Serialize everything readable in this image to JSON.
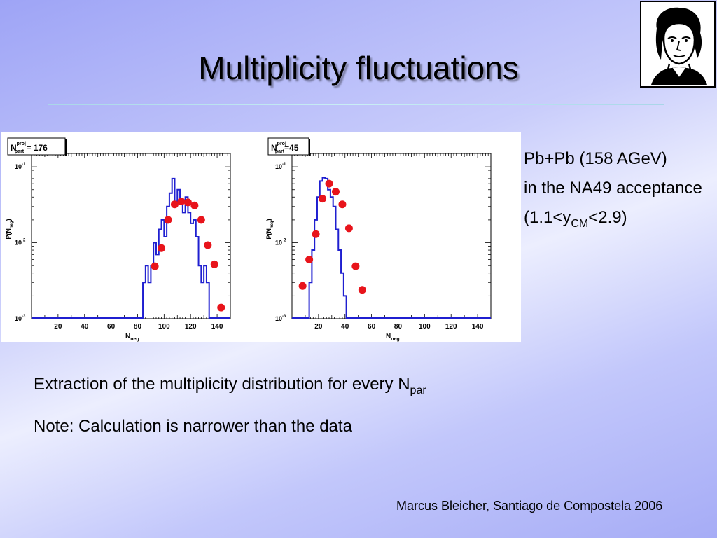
{
  "slide": {
    "title": "Multiplicity fluctuations",
    "side": {
      "line1": "Pb+Pb (158 AGeV)",
      "line2": "in the NA49 acceptance",
      "line3_pre": "(1.1<y",
      "line3_sub": "CM",
      "line3_post": "<2.9)"
    },
    "body": {
      "line1_pre": "Extraction of the multiplicity distribution for every N",
      "line1_sub": "par",
      "line2": "Note: Calculation is narrower than the data"
    },
    "footer": "Marcus Bleicher, Santiago de Compostela 2006"
  },
  "chart_data": [
    {
      "type": "line",
      "label_main": "N",
      "label_sup": "proj",
      "label_sub": "part",
      "label_value": " = 176",
      "xlabel": "N",
      "xlabel_sub": "neg",
      "ylabel": "P(N",
      "ylabel_sub": "neg",
      "ylabel_post": ")",
      "xlim": [
        0,
        150
      ],
      "ylim": [
        0.001,
        0.15
      ],
      "yscale": "log",
      "xticks": [
        "20",
        "40",
        "60",
        "80",
        "100",
        "120",
        "140"
      ],
      "yticks": [
        {
          "base": "10",
          "exp": "-1",
          "value": 0.1
        },
        {
          "base": "10",
          "exp": "-2",
          "value": 0.01
        },
        {
          "base": "10",
          "exp": "-3",
          "value": 0.001
        }
      ],
      "series": [
        {
          "style": "histogram",
          "color": "#1f1fd0",
          "edges": [
            84,
            86,
            88,
            90,
            92,
            94,
            96,
            98,
            100,
            102,
            104,
            106,
            108,
            110,
            112,
            114,
            116,
            118,
            120,
            122,
            124,
            126,
            128,
            130,
            132,
            134
          ],
          "values": [
            0.003,
            0.005,
            0.003,
            0.005,
            0.01,
            0.007,
            0.015,
            0.02,
            0.012,
            0.03,
            0.045,
            0.07,
            0.035,
            0.05,
            0.035,
            0.025,
            0.04,
            0.025,
            0.018,
            0.02,
            0.012,
            0.005,
            0.003,
            0.005,
            0.003
          ]
        },
        {
          "style": "points",
          "color": "#e8141b",
          "x": [
            93,
            98,
            103,
            108,
            113,
            118,
            123,
            128,
            133,
            138,
            143
          ],
          "y": [
            0.0049,
            0.0085,
            0.02,
            0.032,
            0.035,
            0.034,
            0.031,
            0.02,
            0.0093,
            0.0052,
            0.0014
          ]
        }
      ]
    },
    {
      "type": "line",
      "label_main": "N",
      "label_sup": "proj",
      "label_sub": "part",
      "label_value": "=45",
      "xlabel": "N",
      "xlabel_sub": "neg",
      "ylabel": "P(N",
      "ylabel_sub": "neg",
      "ylabel_post": ")",
      "xlim": [
        0,
        150
      ],
      "ylim": [
        0.001,
        0.15
      ],
      "yscale": "log",
      "xticks": [
        "20",
        "40",
        "60",
        "80",
        "100",
        "120",
        "140"
      ],
      "yticks": [
        {
          "base": "10",
          "exp": "-1",
          "value": 0.1
        },
        {
          "base": "10",
          "exp": "-2",
          "value": 0.01
        },
        {
          "base": "10",
          "exp": "-3",
          "value": 0.001
        }
      ],
      "series": [
        {
          "style": "histogram",
          "color": "#1f1fd0",
          "edges": [
            13,
            15,
            17,
            19,
            21,
            23,
            25,
            27,
            29,
            31,
            33,
            35,
            37,
            39,
            41
          ],
          "values": [
            0.003,
            0.008,
            0.02,
            0.04,
            0.065,
            0.072,
            0.07,
            0.05,
            0.04,
            0.03,
            0.015,
            0.008,
            0.004,
            0.002
          ]
        },
        {
          "style": "points",
          "color": "#e8141b",
          "x": [
            8,
            13,
            18,
            23,
            28,
            33,
            38,
            43,
            48,
            53
          ],
          "y": [
            0.0027,
            0.006,
            0.013,
            0.038,
            0.06,
            0.047,
            0.032,
            0.0155,
            0.0049,
            0.0024
          ]
        }
      ]
    }
  ]
}
